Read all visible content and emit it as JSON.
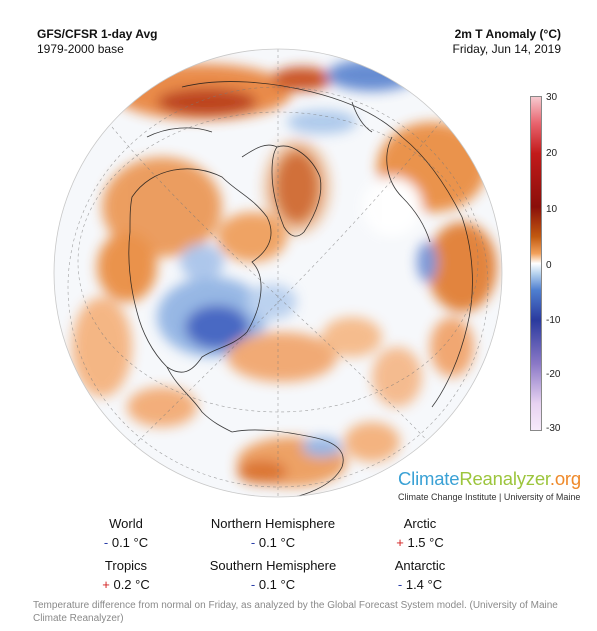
{
  "header": {
    "left_title": "GFS/CFSR 1-day Avg",
    "left_subtitle": "1979-2000 base",
    "right_title": "2m T Anomaly (°C)",
    "right_subtitle": "Friday, Jun 14, 2019"
  },
  "colorbar": {
    "ticks": [
      "30",
      "20",
      "10",
      "0",
      "-10",
      "-20",
      "-30"
    ],
    "colors": {
      "max": "#f6c9cf",
      "warm": "#c21a1a",
      "neutral": "#ffffff",
      "cool": "#2a3a9e",
      "min": "#f6eafa"
    }
  },
  "brand": {
    "part1": "Climate",
    "part2": "Reanalyzer",
    "part3": ".org",
    "subtitle": "Climate Change Institute | University of Maine"
  },
  "stats": [
    {
      "label": "World",
      "sign": "-",
      "value": "0.1 °C"
    },
    {
      "label": "Northern Hemisphere",
      "sign": "-",
      "value": "0.1 °C"
    },
    {
      "label": "Arctic",
      "sign": "+",
      "value": "1.5 °C"
    },
    {
      "label": "Tropics",
      "sign": "+",
      "value": "0.2 °C"
    },
    {
      "label": "Southern Hemisphere",
      "sign": "-",
      "value": "0.1 °C"
    },
    {
      "label": "Antarctic",
      "sign": "-",
      "value": "1.4 °C"
    }
  ],
  "caption": "Temperature difference from normal on Friday, as analyzed by the Global Forecast System model. (University of Maine Climate Reanalyzer)"
}
